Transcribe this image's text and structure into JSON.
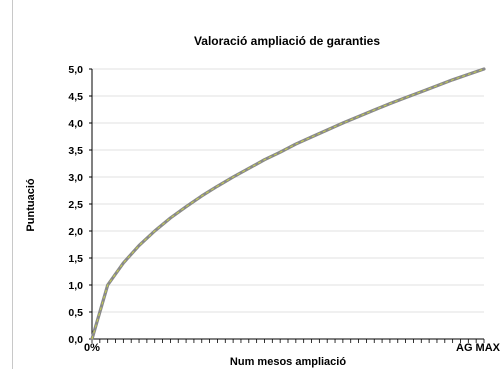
{
  "chart_data": {
    "type": "line",
    "title": "Valoració  ampliació de garanties",
    "xlabel": "Num mesos ampliació",
    "ylabel": "Puntuació",
    "x_tick_first": "0%",
    "x_tick_last": "AG MAX",
    "ylim": [
      0,
      5
    ],
    "y_ticks": [
      "0,0",
      "0,5",
      "1,0",
      "1,5",
      "2,0",
      "2,5",
      "3,0",
      "3,5",
      "4,0",
      "4,5",
      "5,0"
    ],
    "grid": true,
    "x": [
      0,
      0.04,
      0.08,
      0.12,
      0.16,
      0.2,
      0.24,
      0.28,
      0.32,
      0.36,
      0.4,
      0.44,
      0.48,
      0.52,
      0.56,
      0.6,
      0.64,
      0.68,
      0.72,
      0.76,
      0.8,
      0.84,
      0.88,
      0.92,
      0.96,
      1.0
    ],
    "series": [
      {
        "values": [
          0.0,
          1.0,
          1.41,
          1.73,
          2.0,
          2.24,
          2.45,
          2.65,
          2.83,
          3.0,
          3.16,
          3.32,
          3.46,
          3.61,
          3.74,
          3.87,
          4.0,
          4.12,
          4.24,
          4.36,
          4.47,
          4.58,
          4.69,
          4.8,
          4.9,
          5.0
        ],
        "line_color": "#8a8a8a",
        "dash_color": "#c9d34a"
      }
    ]
  }
}
